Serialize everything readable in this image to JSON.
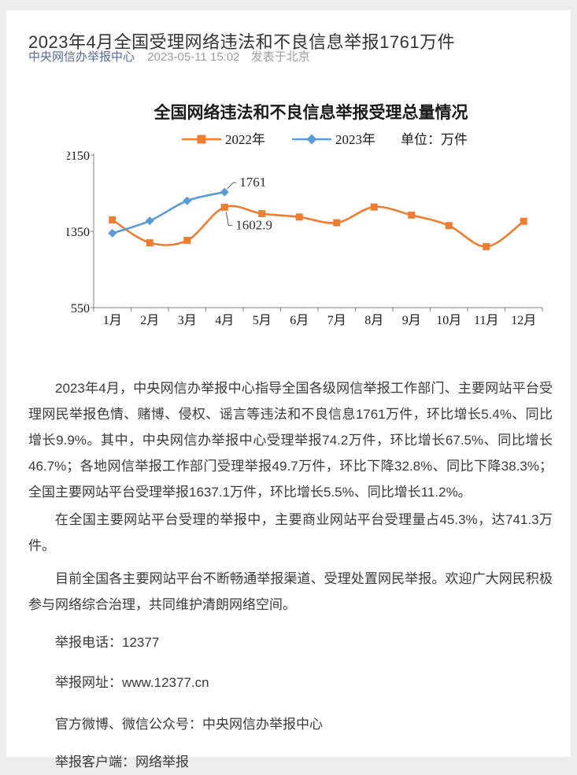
{
  "page": {
    "title": "2023年4月全国受理网络违法和不良信息举报1761万件",
    "byline": {
      "account": "中央网信办举报中心",
      "datetime": "2023-05-11 15:02",
      "location": "发表于北京"
    }
  },
  "chart_data": {
    "type": "line",
    "title": "全国网络违法和不良信息举报受理总量情况",
    "unit_label": "单位：万件",
    "categories": [
      "1月",
      "2月",
      "3月",
      "4月",
      "5月",
      "6月",
      "7月",
      "8月",
      "9月",
      "10月",
      "11月",
      "12月"
    ],
    "series": [
      {
        "name": "2022年",
        "color": "#ED7D31",
        "marker": "square",
        "values": [
          1470,
          1230,
          1255,
          1602.9,
          1535,
          1500,
          1440,
          1605,
          1520,
          1410,
          1190,
          1455
        ]
      },
      {
        "name": "2023年",
        "color": "#5B9BD5",
        "marker": "diamond",
        "values": [
          1330,
          1460,
          1670,
          1761
        ]
      }
    ],
    "annotations": [
      {
        "series": "2023年",
        "category": "4月",
        "label": "1761",
        "placement": "above"
      },
      {
        "series": "2022年",
        "category": "4月",
        "label": "1602.9",
        "placement": "below"
      }
    ],
    "ylim": [
      550,
      2150
    ],
    "yticks": [
      550,
      1350,
      2150
    ],
    "legend_position": "top",
    "grid": false,
    "axis_color": "#808080",
    "text_color": "#1a1a1a"
  },
  "article": {
    "paragraphs": [
      "2023年4月，中央网信办举报中心指导全国各级网信举报工作部门、主要网站平台受理网民举报色情、赌博、侵权、谣言等违法和不良信息1761万件，环比增长5.4%、同比增长9.9%。其中，中央网信办举报中心受理举报74.2万件，环比增长67.5%、同比增长46.7%；各地网信举报工作部门受理举报49.7万件，环比下降32.8%、同比下降38.3%；全国主要网站平台受理举报1637.1万件，环比增长5.5%、同比增长11.2%。",
      "在全国主要网站平台受理的举报中，主要商业网站平台受理量占45.3%，达741.3万件。",
      "目前全国各主要网站平台不断畅通举报渠道、受理处置网民举报。欢迎广大网民积极参与网络综合治理，共同维护清朗网络空间。"
    ],
    "contacts": [
      "举报电话：12377",
      "举报网址：www.12377.cn",
      "官方微博、微信公众号：中央网信办举报中心",
      "举报客户端：网络举报"
    ]
  }
}
